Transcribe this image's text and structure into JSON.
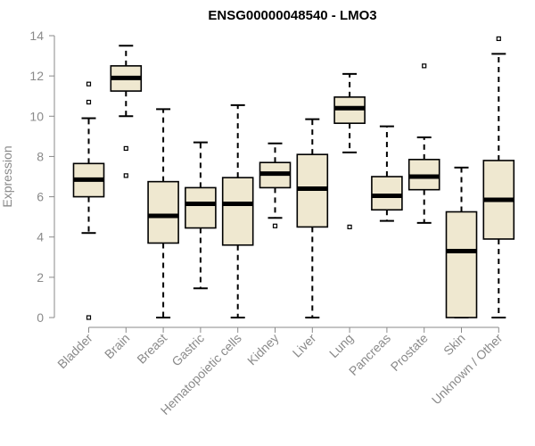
{
  "chart_data": {
    "type": "boxplot",
    "title": "ENSG00000048540 - LMO3",
    "ylabel": "Expression",
    "xlabel": "",
    "ylim": [
      0,
      14
    ],
    "yticks": [
      0,
      2,
      4,
      6,
      8,
      10,
      12,
      14
    ],
    "grid": false,
    "box_fill": "#efe8d0",
    "box_stroke": "#000000",
    "axis_color": "#8a8a8a",
    "categories": [
      "Bladder",
      "Brain",
      "Breast",
      "Gastric",
      "Hematopoietic cells",
      "Kidney",
      "Liver",
      "Lung",
      "Pancreas",
      "Prostate",
      "Skin",
      "Unknown / Other"
    ],
    "boxes": [
      {
        "whisker_low": 4.2,
        "q1": 6.0,
        "median": 6.85,
        "q3": 7.65,
        "whisker_high": 9.9,
        "outliers": [
          0.0,
          10.7,
          11.6
        ]
      },
      {
        "whisker_low": 10.0,
        "q1": 11.25,
        "median": 11.9,
        "q3": 12.5,
        "whisker_high": 13.5,
        "outliers": [
          7.05,
          8.4
        ]
      },
      {
        "whisker_low": 0.0,
        "q1": 3.7,
        "median": 5.05,
        "q3": 6.75,
        "whisker_high": 10.35,
        "outliers": []
      },
      {
        "whisker_low": 1.45,
        "q1": 4.45,
        "median": 5.65,
        "q3": 6.45,
        "whisker_high": 8.7,
        "outliers": []
      },
      {
        "whisker_low": 0.0,
        "q1": 3.6,
        "median": 5.65,
        "q3": 6.95,
        "whisker_high": 10.55,
        "outliers": []
      },
      {
        "whisker_low": 4.95,
        "q1": 6.45,
        "median": 7.15,
        "q3": 7.7,
        "whisker_high": 8.65,
        "outliers": [
          4.55
        ]
      },
      {
        "whisker_low": 0.0,
        "q1": 4.5,
        "median": 6.4,
        "q3": 8.1,
        "whisker_high": 9.85,
        "outliers": []
      },
      {
        "whisker_low": 8.2,
        "q1": 9.65,
        "median": 10.4,
        "q3": 10.95,
        "whisker_high": 12.1,
        "outliers": [
          4.5
        ]
      },
      {
        "whisker_low": 4.8,
        "q1": 5.35,
        "median": 6.05,
        "q3": 7.0,
        "whisker_high": 9.5,
        "outliers": []
      },
      {
        "whisker_low": 4.7,
        "q1": 6.35,
        "median": 7.0,
        "q3": 7.85,
        "whisker_high": 8.95,
        "outliers": [
          12.5
        ]
      },
      {
        "whisker_low": 0.0,
        "q1": 0.0,
        "median": 3.3,
        "q3": 5.25,
        "whisker_high": 7.45,
        "outliers": []
      },
      {
        "whisker_low": 0.0,
        "q1": 3.9,
        "median": 5.85,
        "q3": 7.8,
        "whisker_high": 13.1,
        "outliers": [
          13.85
        ]
      }
    ]
  }
}
